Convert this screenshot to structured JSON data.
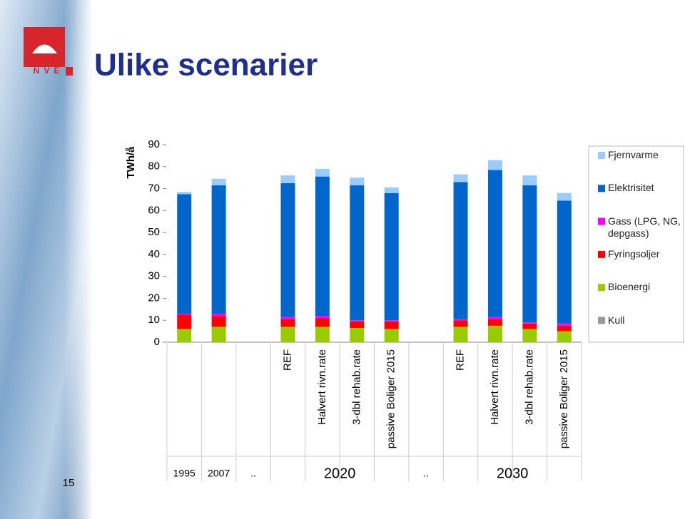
{
  "slide": {
    "title": "Ulike scenarier",
    "logo_text": "NVE",
    "page_number": "15"
  },
  "chart_data": {
    "type": "stacked_bar",
    "y_label": "TWh/å",
    "categories": [
      null,
      null,
      null,
      "REF",
      "Halvert rivn.rate",
      "3-dbl rehab.rate",
      "passive Boliger 2015",
      null,
      "REF",
      "Halvert rivn.rate",
      "3-dbl rehab.rate",
      "passive Boliger 2015"
    ],
    "group_labels": [
      "1995",
      "2007",
      "..",
      "2020",
      null,
      null,
      null,
      "..",
      "2030",
      null,
      null,
      null
    ],
    "series": [
      {
        "name": "Kull",
        "color": "#999999",
        "values": [
          0,
          0,
          null,
          0,
          0,
          0,
          0,
          null,
          0,
          0,
          0,
          0
        ]
      },
      {
        "name": "Bioenergi",
        "color": "#99cc00",
        "values": [
          6,
          7,
          null,
          7,
          7,
          6.5,
          6,
          null,
          7,
          7.5,
          6,
          5
        ]
      },
      {
        "name": "Fyringsoljer",
        "color": "#ff0000",
        "values": [
          6.5,
          5,
          null,
          3.5,
          4,
          3,
          3.5,
          null,
          3,
          3,
          2.5,
          2.5
        ]
      },
      {
        "name": "Gass (LPG, NG, depgass)",
        "color": "#ff00ff",
        "values": [
          0.5,
          1,
          null,
          1,
          1,
          0.5,
          0.5,
          null,
          0.5,
          1,
          0.5,
          1
        ]
      },
      {
        "name": "Elektrisitet",
        "color": "#0066cc",
        "values": [
          54.5,
          58.5,
          null,
          61,
          63.5,
          61.5,
          58,
          null,
          62.5,
          67,
          62.5,
          56
        ]
      },
      {
        "name": "Fjernvarme",
        "color": "#99ccff",
        "values": [
          1,
          3,
          null,
          3.5,
          3.5,
          3.5,
          2.5,
          null,
          3.5,
          4.5,
          4.5,
          3.5
        ]
      }
    ],
    "ylim": [
      0,
      90
    ],
    "yticks": [
      0,
      10,
      20,
      30,
      40,
      50,
      60,
      70,
      80,
      90
    ],
    "grid": false
  }
}
